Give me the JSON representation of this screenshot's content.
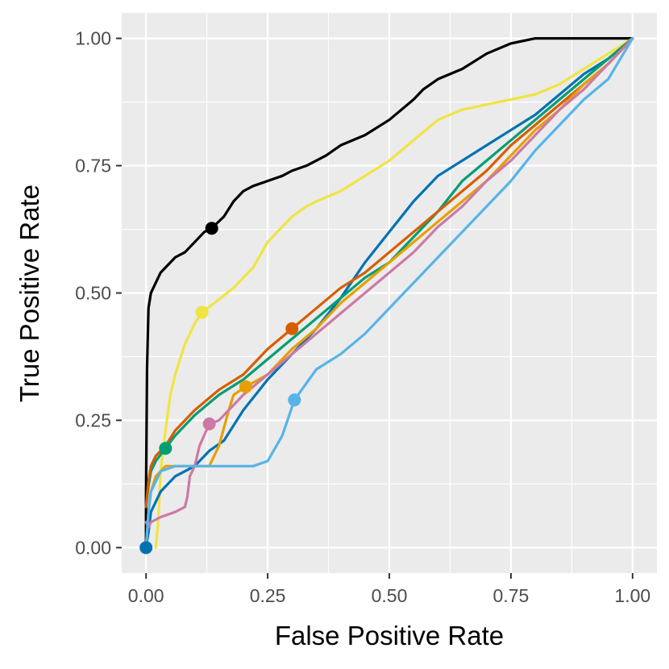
{
  "chart_data": {
    "type": "line",
    "title": "",
    "xlabel": "False Positive Rate",
    "ylabel": "True Positive Rate",
    "xlim": [
      -0.05,
      1.05
    ],
    "ylim": [
      -0.05,
      1.05
    ],
    "x_ticks": [
      0,
      0.25,
      0.5,
      0.75,
      1
    ],
    "x_tick_labels": [
      "0.00",
      "0.25",
      "0.50",
      "0.75",
      "1.00"
    ],
    "y_ticks": [
      0,
      0.25,
      0.5,
      0.75,
      1
    ],
    "y_tick_labels": [
      "0.00",
      "0.25",
      "0.50",
      "0.75",
      "1.00"
    ],
    "background": "#ebebeb",
    "grid": true,
    "legend": "none",
    "series": [
      {
        "name": "black",
        "color": "#000000",
        "point": [
          0.135,
          0.627
        ],
        "x": [
          0,
          0,
          0.002,
          0.005,
          0.01,
          0.02,
          0.03,
          0.04,
          0.05,
          0.06,
          0.08,
          0.1,
          0.12,
          0.135,
          0.16,
          0.18,
          0.2,
          0.22,
          0.25,
          0.28,
          0.3,
          0.33,
          0.37,
          0.4,
          0.45,
          0.5,
          0.55,
          0.57,
          0.6,
          0.65,
          0.7,
          0.75,
          0.8,
          0.9,
          1.0
        ],
        "y": [
          0,
          0.1,
          0.35,
          0.47,
          0.5,
          0.52,
          0.54,
          0.55,
          0.56,
          0.57,
          0.58,
          0.6,
          0.62,
          0.627,
          0.65,
          0.68,
          0.7,
          0.71,
          0.72,
          0.73,
          0.74,
          0.75,
          0.77,
          0.79,
          0.81,
          0.84,
          0.88,
          0.9,
          0.92,
          0.94,
          0.97,
          0.99,
          1.0,
          1.0,
          1.0
        ]
      },
      {
        "name": "yellow",
        "color": "#f0e442",
        "point": [
          0.115,
          0.462
        ],
        "x": [
          0.02,
          0.025,
          0.03,
          0.04,
          0.05,
          0.06,
          0.08,
          0.1,
          0.115,
          0.14,
          0.18,
          0.22,
          0.25,
          0.28,
          0.3,
          0.33,
          0.35,
          0.4,
          0.45,
          0.5,
          0.55,
          0.6,
          0.65,
          0.7,
          0.75,
          0.8,
          0.85,
          0.9,
          0.95,
          1.0
        ],
        "y": [
          0,
          0.05,
          0.15,
          0.23,
          0.3,
          0.34,
          0.4,
          0.44,
          0.462,
          0.48,
          0.51,
          0.55,
          0.6,
          0.63,
          0.65,
          0.67,
          0.68,
          0.7,
          0.73,
          0.76,
          0.8,
          0.84,
          0.86,
          0.87,
          0.88,
          0.89,
          0.91,
          0.94,
          0.97,
          1.0
        ]
      },
      {
        "name": "blue",
        "color": "#0072b2",
        "point": [
          0.0,
          0.0
        ],
        "x": [
          0,
          0.005,
          0.01,
          0.03,
          0.06,
          0.1,
          0.13,
          0.16,
          0.2,
          0.25,
          0.3,
          0.35,
          0.4,
          0.45,
          0.5,
          0.55,
          0.6,
          0.65,
          0.7,
          0.75,
          0.8,
          0.85,
          0.9,
          0.95,
          1.0
        ],
        "y": [
          0,
          0.03,
          0.07,
          0.11,
          0.14,
          0.16,
          0.19,
          0.21,
          0.27,
          0.33,
          0.38,
          0.43,
          0.49,
          0.56,
          0.62,
          0.68,
          0.73,
          0.76,
          0.79,
          0.82,
          0.85,
          0.89,
          0.93,
          0.96,
          1.0
        ]
      },
      {
        "name": "green",
        "color": "#009e73",
        "point": [
          0.04,
          0.195
        ],
        "x": [
          0,
          0.005,
          0.01,
          0.02,
          0.04,
          0.06,
          0.1,
          0.15,
          0.2,
          0.25,
          0.3,
          0.35,
          0.4,
          0.45,
          0.5,
          0.55,
          0.6,
          0.65,
          0.7,
          0.75,
          0.8,
          0.85,
          0.9,
          0.95,
          1.0
        ],
        "y": [
          0.08,
          0.12,
          0.15,
          0.17,
          0.195,
          0.22,
          0.26,
          0.3,
          0.33,
          0.37,
          0.41,
          0.45,
          0.49,
          0.53,
          0.56,
          0.61,
          0.66,
          0.72,
          0.76,
          0.8,
          0.84,
          0.88,
          0.92,
          0.96,
          1.0
        ]
      },
      {
        "name": "vermillion",
        "color": "#d55e00",
        "point": [
          0.3,
          0.43
        ],
        "x": [
          0,
          0.005,
          0.01,
          0.02,
          0.04,
          0.06,
          0.1,
          0.15,
          0.2,
          0.25,
          0.3,
          0.35,
          0.4,
          0.45,
          0.5,
          0.55,
          0.6,
          0.65,
          0.7,
          0.75,
          0.8,
          0.85,
          0.9,
          0.95,
          1.0
        ],
        "y": [
          0.08,
          0.13,
          0.16,
          0.18,
          0.2,
          0.23,
          0.27,
          0.31,
          0.34,
          0.39,
          0.43,
          0.47,
          0.51,
          0.54,
          0.58,
          0.62,
          0.66,
          0.7,
          0.74,
          0.79,
          0.83,
          0.87,
          0.91,
          0.95,
          1.0
        ]
      },
      {
        "name": "orange",
        "color": "#e69f00",
        "point": [
          0.205,
          0.316
        ],
        "x": [
          0,
          0.005,
          0.01,
          0.02,
          0.04,
          0.06,
          0.09,
          0.12,
          0.13,
          0.15,
          0.17,
          0.18,
          0.205,
          0.25,
          0.3,
          0.35,
          0.4,
          0.45,
          0.5,
          0.55,
          0.6,
          0.65,
          0.7,
          0.75,
          0.8,
          0.85,
          0.9,
          0.95,
          1.0
        ],
        "y": [
          0,
          0.07,
          0.11,
          0.14,
          0.16,
          0.16,
          0.16,
          0.16,
          0.16,
          0.2,
          0.27,
          0.3,
          0.316,
          0.34,
          0.39,
          0.43,
          0.48,
          0.52,
          0.56,
          0.6,
          0.64,
          0.68,
          0.72,
          0.77,
          0.82,
          0.86,
          0.91,
          0.95,
          1.0
        ]
      },
      {
        "name": "pink",
        "color": "#cc79a7",
        "point": [
          0.13,
          0.243
        ],
        "x": [
          0,
          0.005,
          0.01,
          0.03,
          0.06,
          0.08,
          0.085,
          0.09,
          0.1,
          0.11,
          0.13,
          0.15,
          0.2,
          0.25,
          0.3,
          0.35,
          0.4,
          0.45,
          0.5,
          0.55,
          0.6,
          0.65,
          0.7,
          0.75,
          0.8,
          0.85,
          0.9,
          0.95,
          1.0
        ],
        "y": [
          0.05,
          0.04,
          0.05,
          0.06,
          0.07,
          0.08,
          0.1,
          0.14,
          0.16,
          0.2,
          0.243,
          0.25,
          0.3,
          0.34,
          0.38,
          0.42,
          0.46,
          0.5,
          0.54,
          0.58,
          0.63,
          0.67,
          0.72,
          0.76,
          0.81,
          0.86,
          0.9,
          0.95,
          1.0
        ]
      },
      {
        "name": "skyblue",
        "color": "#56b4e9",
        "point": [
          0.305,
          0.29
        ],
        "x": [
          0,
          0.005,
          0.01,
          0.03,
          0.06,
          0.1,
          0.15,
          0.2,
          0.22,
          0.25,
          0.28,
          0.305,
          0.35,
          0.4,
          0.45,
          0.5,
          0.55,
          0.6,
          0.65,
          0.7,
          0.75,
          0.8,
          0.85,
          0.9,
          0.95,
          1.0
        ],
        "y": [
          0,
          0.07,
          0.11,
          0.15,
          0.16,
          0.16,
          0.16,
          0.16,
          0.16,
          0.17,
          0.22,
          0.29,
          0.35,
          0.38,
          0.42,
          0.47,
          0.52,
          0.57,
          0.62,
          0.67,
          0.72,
          0.78,
          0.83,
          0.88,
          0.92,
          1.0
        ]
      }
    ]
  }
}
